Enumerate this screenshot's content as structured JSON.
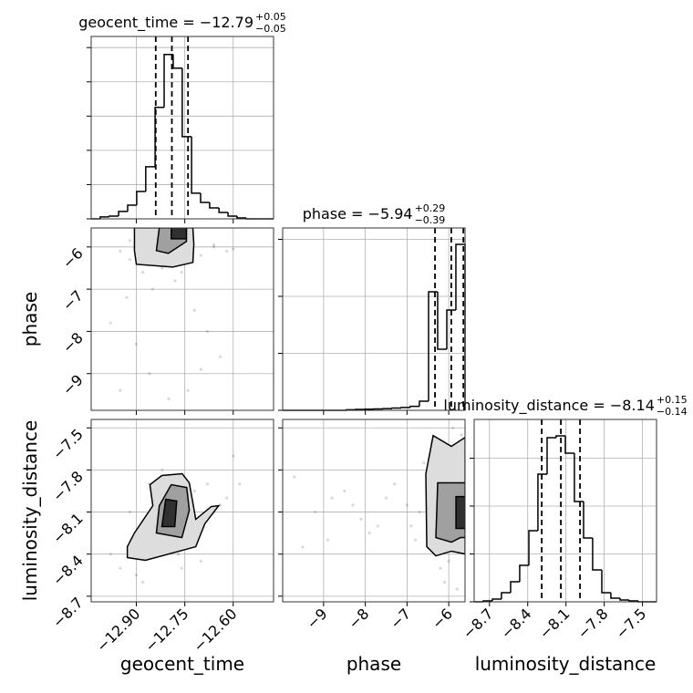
{
  "chart_data": [
    {
      "type": "histogram",
      "title": "geocent_time = −12.79",
      "title_sup": "+0.05",
      "title_sub": "−0.05",
      "bins": [
        -13.04,
        -13.012,
        -12.984,
        -12.955,
        -12.927,
        -12.899,
        -12.871,
        -12.842,
        -12.814,
        -12.786,
        -12.758,
        -12.729,
        -12.701,
        -12.673,
        -12.644,
        -12.616,
        -12.588,
        -12.56,
        -12.531,
        -12.503,
        -12.475
      ],
      "counts": [
        0,
        11,
        16,
        43,
        80,
        160,
        304,
        651,
        960,
        880,
        480,
        150,
        96,
        64,
        37,
        16,
        5,
        0,
        0,
        0
      ],
      "quantiles": [
        -12.84,
        -12.79,
        -12.74
      ],
      "color": "#000000",
      "xlim": [
        -13.04,
        -12.475
      ],
      "ylim": [
        0,
        1065
      ],
      "xticks": [
        -12.9,
        -12.75,
        -12.6
      ],
      "yticks": [
        0,
        200,
        400,
        600,
        800,
        1000
      ],
      "grid": true
    },
    {
      "type": "scatter",
      "ylabel": "phase",
      "color": "#000000",
      "x": [
        -12.95,
        -12.92,
        -12.88,
        -12.7,
        -12.66,
        -12.62,
        -12.93,
        -12.98,
        -12.85,
        -12.78,
        -12.72,
        -12.68,
        -12.64,
        -12.9,
        -12.86,
        -12.95,
        -12.8,
        -12.74,
        -12.7,
        -12.82,
        -12.76,
        -12.88,
        -12.66,
        -12.92,
        -12.6
      ],
      "values": [
        -6.1,
        -6.3,
        -6.6,
        -6.2,
        -6.0,
        -6.1,
        -7.2,
        -7.8,
        -7.0,
        -6.8,
        -7.5,
        -8.0,
        -8.6,
        -8.3,
        -9.0,
        -9.4,
        -9.6,
        -9.4,
        -8.9,
        -6.5,
        -6.6,
        -5.9,
        -5.95,
        -5.85,
        -6.05
      ],
      "contours": [
        {
          "x": [
            -12.906,
            -12.906,
            -12.9,
            -12.787,
            -12.725,
            -12.722,
            -12.725
          ],
          "y": [
            -5.546,
            -6.086,
            -6.41,
            -6.475,
            -6.367,
            -5.935,
            -5.546
          ],
          "color": "#dddddd"
        },
        {
          "x": [
            -12.829,
            -12.838,
            -12.801,
            -12.745,
            -12.745
          ],
          "y": [
            -5.546,
            -6.086,
            -6.151,
            -5.87,
            -5.546
          ],
          "color": "#a0a0a0"
        },
        {
          "x": [
            -12.792,
            -12.792,
            -12.745,
            -12.745
          ],
          "y": [
            -5.546,
            -5.806,
            -5.806,
            -5.546
          ],
          "color": "#303030"
        }
      ],
      "xlim": [
        -13.04,
        -12.475
      ],
      "ylim": [
        -9.87,
        -5.55
      ],
      "xticks": [
        -12.9,
        -12.75,
        -12.6
      ],
      "yticks": [
        {
          "value": -6,
          "label": "−6"
        },
        {
          "value": -7,
          "label": "−7"
        },
        {
          "value": -8,
          "label": "−8"
        },
        {
          "value": -9,
          "label": "−9"
        }
      ],
      "grid": true
    },
    {
      "type": "histogram",
      "title": "phase = −5.94",
      "title_sup": "+0.29",
      "title_sub": "−0.39",
      "bins": [
        -9.98,
        -9.762,
        -9.543,
        -9.325,
        -9.106,
        -8.888,
        -8.669,
        -8.451,
        -8.232,
        -8.014,
        -7.795,
        -7.577,
        -7.358,
        -7.14,
        -6.921,
        -6.703,
        -6.484,
        -6.266,
        -6.047,
        -5.829,
        -5.61
      ],
      "counts": [
        0,
        0,
        0,
        0,
        0,
        0,
        0,
        5,
        8,
        10,
        12,
        15,
        20,
        25,
        35,
        80,
        1040,
        536,
        880,
        1456
      ],
      "quantiles": [
        -6.33,
        -5.94,
        -5.65
      ],
      "color": "#000000",
      "xlim": [
        -9.98,
        -5.61
      ],
      "ylim": [
        0,
        1600
      ],
      "xticks": [
        -9,
        -8,
        -7,
        -6
      ],
      "yticks": [
        0,
        500,
        1000,
        1500
      ],
      "grid": true
    },
    {
      "type": "scatter",
      "xlabel": "geocent_time",
      "ylabel": "luminosity_distance",
      "color": "#000000",
      "x": [
        -12.95,
        -12.9,
        -12.87,
        -12.84,
        -12.8,
        -12.77,
        -12.74,
        -12.7,
        -12.66,
        -12.62,
        -12.58,
        -12.92,
        -12.86,
        -12.82,
        -12.78,
        -12.72,
        -12.68,
        -12.64,
        -12.98,
        -12.88,
        -12.76,
        -12.7,
        -12.6,
        -12.84,
        -12.8
      ],
      "values": [
        -8.5,
        -8.55,
        -8.3,
        -8.2,
        -8.35,
        -8.4,
        -8.3,
        -8.2,
        -8.1,
        -8.0,
        -7.9,
        -8.1,
        -7.9,
        -7.8,
        -7.85,
        -7.95,
        -7.9,
        -8.05,
        -8.4,
        -8.6,
        -8.5,
        -8.45,
        -7.7,
        -8.0,
        -8.15
      ],
      "contours": [
        {
          "x": [
            -12.928,
            -12.872,
            -12.716,
            -12.688,
            -12.645,
            -12.668,
            -12.716,
            -12.736,
            -12.758,
            -12.821,
            -12.858,
            -12.849,
            -12.906,
            -12.928
          ],
          "y": [
            -8.425,
            -8.444,
            -8.347,
            -8.184,
            -8.055,
            -8.061,
            -8.152,
            -7.892,
            -7.827,
            -7.84,
            -7.905,
            -8.055,
            -8.249,
            -8.347
          ],
          "color": "#dddddd"
        },
        {
          "x": [
            -12.838,
            -12.759,
            -12.736,
            -12.744,
            -12.792,
            -12.829
          ],
          "y": [
            -8.249,
            -8.282,
            -8.087,
            -7.925,
            -7.905,
            -8.055
          ],
          "color": "#a0a0a0"
        },
        {
          "x": [
            -12.821,
            -12.781,
            -12.775,
            -12.809
          ],
          "y": [
            -8.204,
            -8.204,
            -8.022,
            -8.009
          ],
          "color": "#303030"
        }
      ],
      "xlim": [
        -13.04,
        -12.475
      ],
      "ylim": [
        -8.74,
        -7.44
      ],
      "xticks": [
        {
          "value": -12.9,
          "label": "−12.90"
        },
        {
          "value": -12.75,
          "label": "−12.75"
        },
        {
          "value": -12.6,
          "label": "−12.60"
        }
      ],
      "yticks": [
        {
          "value": -7.5,
          "label": "−7.5"
        },
        {
          "value": -7.8,
          "label": "−7.8"
        },
        {
          "value": -8.1,
          "label": "−8.1"
        },
        {
          "value": -8.4,
          "label": "−8.4"
        },
        {
          "value": -8.7,
          "label": "−8.7"
        }
      ],
      "grid": true
    },
    {
      "type": "scatter",
      "xlabel": "phase",
      "color": "#000000",
      "x": [
        -9.7,
        -9.2,
        -8.8,
        -8.5,
        -8.1,
        -7.7,
        -7.3,
        -7.0,
        -6.8,
        -6.6,
        -9.5,
        -8.3,
        -7.5,
        -6.9,
        -6.4,
        -6.2,
        -6.1,
        -5.9,
        -5.8,
        -6.3,
        -6.0,
        -5.7,
        -7.9,
        -8.9,
        -6.7
      ],
      "values": [
        -7.85,
        -8.1,
        -8.0,
        -7.95,
        -8.15,
        -8.2,
        -7.9,
        -8.05,
        -8.3,
        -7.75,
        -8.35,
        -8.05,
        -8.0,
        -8.2,
        -7.6,
        -8.5,
        -8.6,
        -7.5,
        -8.65,
        -7.7,
        -8.45,
        -7.55,
        -8.25,
        -8.3,
        -8.1
      ],
      "contours": [
        {
          "x": [
            -6.374,
            -6.549,
            -6.527,
            -6.309,
            -5.937,
            -5.608,
            -5.608,
            -5.937
          ],
          "y": [
            -7.555,
            -7.827,
            -8.347,
            -8.412,
            -8.379,
            -8.399,
            -7.568,
            -7.632
          ],
          "color": "#dddddd"
        },
        {
          "x": [
            -6.265,
            -6.309,
            -5.937,
            -5.718,
            -5.608,
            -5.608,
            -5.827
          ],
          "y": [
            -7.892,
            -8.282,
            -8.315,
            -8.282,
            -8.282,
            -7.892,
            -7.892
          ],
          "color": "#a0a0a0"
        },
        {
          "x": [
            -5.827,
            -5.827,
            -5.608,
            -5.608
          ],
          "y": [
            -7.99,
            -8.217,
            -8.217,
            -7.99
          ],
          "color": "#303030"
        }
      ],
      "xlim": [
        -9.98,
        -5.61
      ],
      "ylim": [
        -8.74,
        -7.44
      ],
      "xticks": [
        {
          "value": -9,
          "label": "−9"
        },
        {
          "value": -8,
          "label": "−8"
        },
        {
          "value": -7,
          "label": "−7"
        },
        {
          "value": -6,
          "label": "−6"
        }
      ],
      "yticks": [
        -7.5,
        -7.8,
        -8.1,
        -8.4,
        -8.7
      ],
      "grid": true
    },
    {
      "type": "histogram",
      "title": "luminosity_distance = −8.14",
      "title_sup": "+0.15",
      "title_sub": "−0.14",
      "xlabel": "luminosity_distance",
      "bins": [
        -8.82,
        -8.749,
        -8.677,
        -8.606,
        -8.534,
        -8.463,
        -8.391,
        -8.32,
        -8.248,
        -8.177,
        -8.105,
        -8.034,
        -7.962,
        -7.891,
        -7.819,
        -7.748,
        -7.676,
        -7.605,
        -7.533,
        -7.462,
        -7.39
      ],
      "counts": [
        0,
        10,
        29,
        95,
        210,
        381,
        743,
        1333,
        1714,
        1733,
        1552,
        1048,
        667,
        333,
        95,
        38,
        19,
        10,
        0,
        0
      ],
      "quantiles": [
        -8.29,
        -8.14,
        -7.99
      ],
      "color": "#000000",
      "xlim": [
        -8.82,
        -7.39
      ],
      "ylim": [
        0,
        1905
      ],
      "xticks": [
        {
          "value": -8.7,
          "label": "−8.7"
        },
        {
          "value": -8.4,
          "label": "−8.4"
        },
        {
          "value": -8.1,
          "label": "−8.1"
        },
        {
          "value": -7.8,
          "label": "−7.8"
        },
        {
          "value": -7.5,
          "label": "−7.5"
        }
      ],
      "yticks": [
        0,
        500,
        1000,
        1500
      ],
      "grid": true
    }
  ]
}
